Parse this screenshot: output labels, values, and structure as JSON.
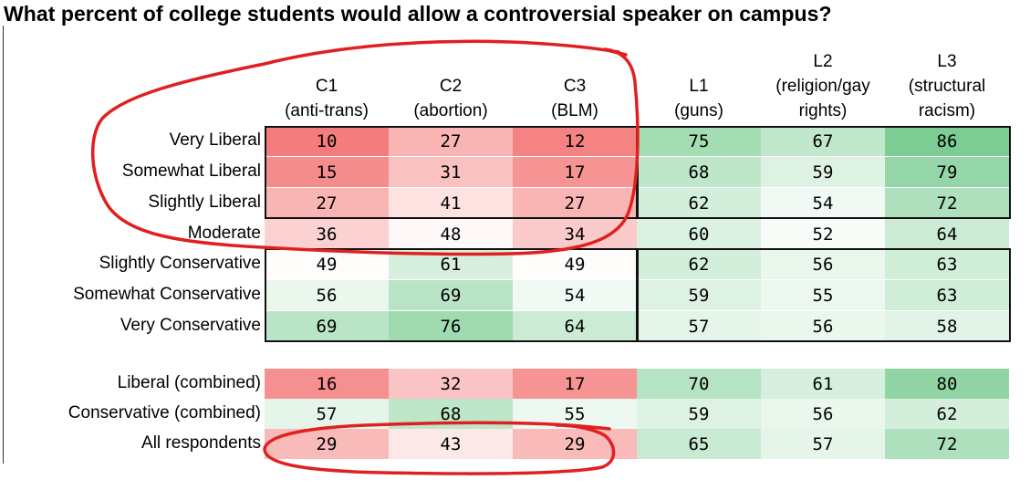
{
  "chart_data": {
    "type": "table",
    "title": "What percent of college students would allow a controversial speaker on campus?",
    "columns": [
      {
        "label": "C1",
        "sub": "(anti-trans)"
      },
      {
        "label": "C2",
        "sub": "(abortion)"
      },
      {
        "label": "C3",
        "sub": "(BLM)"
      },
      {
        "label": "L1",
        "sub": "(guns)"
      },
      {
        "label": "L2",
        "sub": "(religion/gay rights)",
        "sub_lines": [
          "(religion/gay",
          "rights)"
        ]
      },
      {
        "label": "L3",
        "sub": "(structural racism)",
        "sub_lines": [
          "(structural",
          "racism)"
        ]
      }
    ],
    "rows": [
      {
        "label": "Very Liberal",
        "values": [
          10,
          27,
          12,
          75,
          67,
          86
        ]
      },
      {
        "label": "Somewhat Liberal",
        "values": [
          15,
          31,
          17,
          68,
          59,
          79
        ]
      },
      {
        "label": "Slightly Liberal",
        "values": [
          27,
          41,
          27,
          62,
          54,
          72
        ]
      },
      {
        "label": "Moderate",
        "values": [
          36,
          48,
          34,
          60,
          52,
          64
        ]
      },
      {
        "label": "Slightly Conservative",
        "values": [
          49,
          61,
          49,
          62,
          56,
          63
        ]
      },
      {
        "label": "Somewhat Conservative",
        "values": [
          56,
          69,
          54,
          59,
          55,
          63
        ]
      },
      {
        "label": "Very Conservative",
        "values": [
          69,
          76,
          64,
          57,
          56,
          58
        ]
      },
      {
        "label": "Liberal (combined)",
        "values": [
          16,
          32,
          17,
          70,
          61,
          80
        ]
      },
      {
        "label": "Conservative (combined)",
        "values": [
          57,
          68,
          55,
          59,
          56,
          62
        ]
      },
      {
        "label": "All respondents",
        "values": [
          29,
          43,
          29,
          65,
          57,
          72
        ]
      }
    ],
    "color_scale": {
      "low": "#f47c7c",
      "mid": "#ffffff",
      "high": "#7ccc93",
      "midpoint": 50
    },
    "annotation_color": "#e02020"
  }
}
